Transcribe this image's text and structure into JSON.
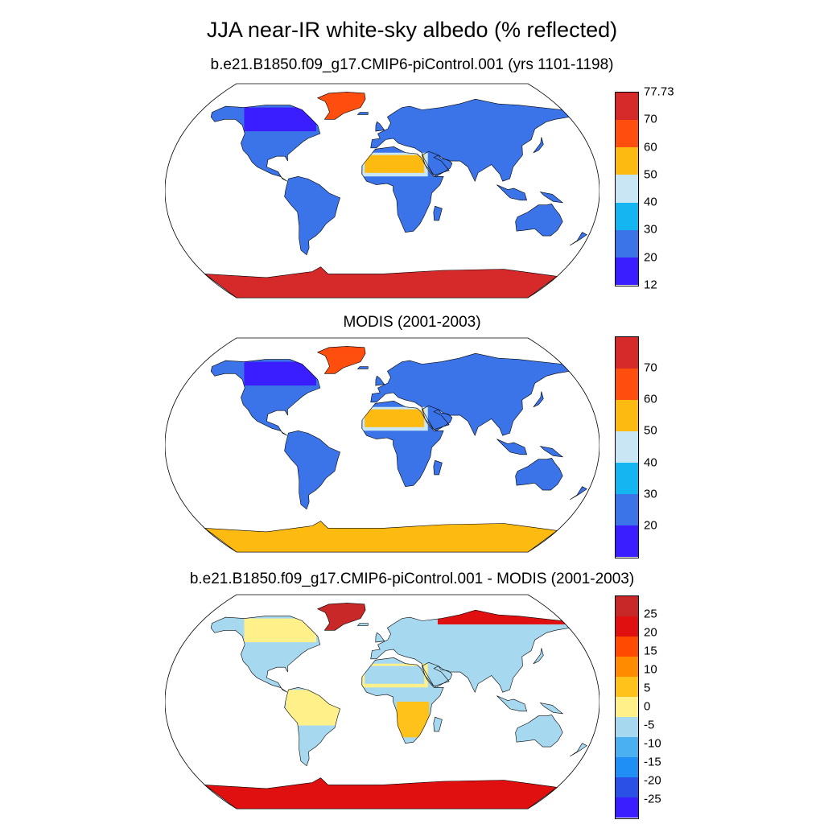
{
  "title": "JJA near-IR white-sky albedo (% reflected)",
  "panels": [
    {
      "title": "b.e21.B1850.f09_g17.CMIP6-piControl.001 (yrs 1101-1198)",
      "colorbar": {
        "colors": [
          "#3a1eff",
          "#3b73e8",
          "#13b6f0",
          "#c8e6f4",
          "#fdbb12",
          "#ff4e0e",
          "#d62a2a"
        ],
        "labels": [
          "12",
          "20",
          "30",
          "40",
          "50",
          "60",
          "70",
          "77.73"
        ]
      }
    },
    {
      "title": "MODIS (2001-2003)",
      "colorbar": {
        "colors": [
          "#3a1eff",
          "#3b73e8",
          "#13b6f0",
          "#c8e6f4",
          "#fdbb12",
          "#ff4e0e",
          "#d62a2a"
        ],
        "labels": [
          "",
          "20",
          "30",
          "40",
          "50",
          "60",
          "70",
          ""
        ]
      }
    },
    {
      "title": "b.e21.B1850.f09_g17.CMIP6-piControl.001 - MODIS (2001-2003)",
      "colorbar": {
        "colors": [
          "#3a1eff",
          "#2a50e6",
          "#1f8ef5",
          "#4ab0f0",
          "#a6d8f0",
          "#fff08a",
          "#ffc21a",
          "#ff8c00",
          "#ff4a00",
          "#e01010",
          "#c82828"
        ],
        "labels": [
          "",
          "-25",
          "-20",
          "-15",
          "-10",
          "-5",
          "0",
          "5",
          "10",
          "15",
          "20",
          "25",
          ""
        ]
      }
    }
  ],
  "map_regions": {
    "panel_1": {
      "land": "#3b73e8",
      "greenland": "#ff4e0e",
      "antarctica": "#d62a2a",
      "sahara": "#fdbb12",
      "sahara_edge": "#c8e6f4",
      "canada": "#3a1eff"
    },
    "panel_2": {
      "land": "#3b73e8",
      "greenland": "#ff4e0e",
      "antarctica": "#fdbb12",
      "sahara": "#fdbb12",
      "sahara_edge": "#c8e6f4",
      "canada": "#3a1eff"
    },
    "panel_3": {
      "land": "#a6d8f0",
      "greenland": "#c82828",
      "antarctica": "#e01010",
      "sahara": "#a6d8f0",
      "sahara_edge": "#fff08a",
      "canada": "#fff08a",
      "south_america": "#fff08a",
      "southern_africa": "#ffc21a",
      "siberia_coast": "#e01010"
    }
  }
}
